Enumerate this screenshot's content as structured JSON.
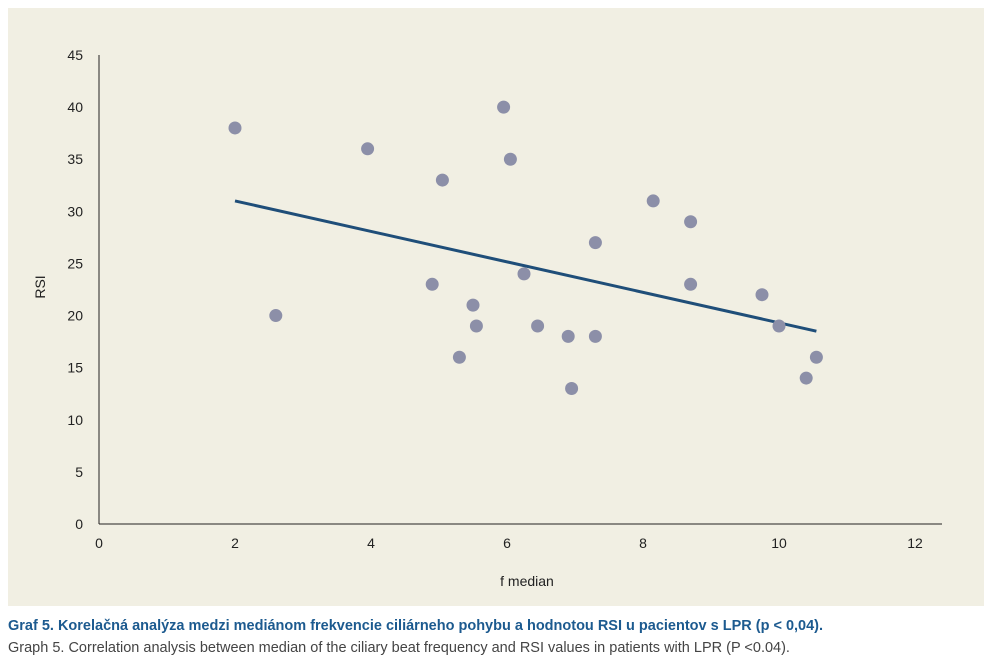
{
  "chart_data": {
    "type": "scatter",
    "title": "",
    "xlabel": "f median",
    "ylabel": "RSI",
    "xlim": [
      0,
      12
    ],
    "ylim": [
      0,
      45
    ],
    "xticks": [
      0,
      2,
      4,
      6,
      8,
      10,
      12
    ],
    "yticks": [
      0,
      5,
      10,
      15,
      20,
      25,
      30,
      35,
      40,
      45
    ],
    "grid": false,
    "colors": {
      "points": "#8c8fa8",
      "trendline": "#1f4e79",
      "background": "#f1efe3"
    },
    "points": [
      {
        "x": 2.0,
        "y": 38
      },
      {
        "x": 2.6,
        "y": 20
      },
      {
        "x": 3.95,
        "y": 36
      },
      {
        "x": 4.9,
        "y": 23
      },
      {
        "x": 5.05,
        "y": 33
      },
      {
        "x": 5.3,
        "y": 16
      },
      {
        "x": 5.5,
        "y": 21
      },
      {
        "x": 5.55,
        "y": 19
      },
      {
        "x": 5.95,
        "y": 40
      },
      {
        "x": 6.05,
        "y": 35
      },
      {
        "x": 6.25,
        "y": 24
      },
      {
        "x": 6.45,
        "y": 19
      },
      {
        "x": 6.9,
        "y": 18
      },
      {
        "x": 6.95,
        "y": 13
      },
      {
        "x": 7.3,
        "y": 27
      },
      {
        "x": 7.3,
        "y": 18
      },
      {
        "x": 8.15,
        "y": 31
      },
      {
        "x": 8.7,
        "y": 29
      },
      {
        "x": 8.7,
        "y": 23
      },
      {
        "x": 9.75,
        "y": 22
      },
      {
        "x": 10.0,
        "y": 19
      },
      {
        "x": 10.4,
        "y": 14
      },
      {
        "x": 10.55,
        "y": 16
      }
    ],
    "trendline": {
      "x": [
        2.0,
        10.55
      ],
      "y": [
        31,
        18.5
      ]
    }
  },
  "captions": {
    "slovak": "Graf 5. Korelačná analýza medzi mediánom frekvencie ciliárneho pohybu a hodnotou RSI u pacientov s LPR (p < 0,04).",
    "english": "Graph 5. Correlation analysis between median of the ciliary beat frequency and RSI values in patients with LPR (P <0.04)."
  }
}
